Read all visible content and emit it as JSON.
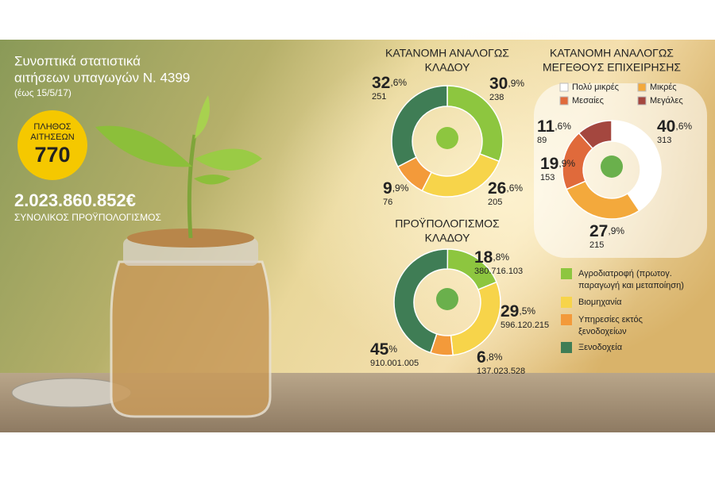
{
  "header": {
    "title_lines": [
      "Συνοπτικά στατιστικά",
      "αιτήσεων υπαγωγών Ν. 4399"
    ],
    "date": "(έως 15/5/17)",
    "count_label_lines": [
      "ΠΛΗΘΟΣ",
      "ΑΙΤΗΣΕΩΝ"
    ],
    "count": "770",
    "budget": "2.023.860.852€",
    "budget_label": "ΣΥΝΟΛΙΚΟΣ ΠΡΟΫΠΟΛΟΓΙΣΜΟΣ"
  },
  "sector_legend": {
    "items": [
      [
        "Αγροδιατροφή (πρωτογ.",
        "παραγωγή και μεταποίηση)"
      ],
      [
        "Βιομηχανία"
      ],
      [
        "Υπηρεσίες εκτός",
        "ξενοδοχείων"
      ],
      [
        "Ξενοδοχεία"
      ]
    ],
    "colors": [
      "#8dc63f",
      "#f7d44a",
      "#f39a3a",
      "#3f7d55"
    ]
  },
  "chart_data": [
    {
      "type": "pie",
      "title": [
        "ΚΑΤΑΝΟΜΗ ΑΝΑΛΟΓΩΣ",
        "ΚΛΑΔΟΥ"
      ],
      "values": [
        30.9,
        26.6,
        9.9,
        32.6
      ],
      "value_labels": [
        "30,9%",
        "26,6%",
        "9,9%",
        "32,6%"
      ],
      "counts": [
        "238",
        "205",
        "76",
        "251"
      ],
      "colors": [
        "#8dc63f",
        "#f7d44a",
        "#f39a3a",
        "#3f7d55"
      ]
    },
    {
      "type": "pie",
      "title": [
        "ΚΑΤΑΝΟΜΗ ΑΝΑΛΟΓΩΣ",
        "ΜΕΓΕΘΟΥΣ ΕΠΙΧΕΙΡΗΣΗΣ"
      ],
      "categories": [
        "Πολύ μικρές",
        "Μικρές",
        "Μεσαίες",
        "Μεγάλες"
      ],
      "values": [
        40.6,
        27.9,
        19.9,
        11.6
      ],
      "value_labels": [
        "40,6%",
        "27,9%",
        "19,9%",
        "11,6%"
      ],
      "counts": [
        "313",
        "215",
        "153",
        "89"
      ],
      "colors": [
        "#ffffff",
        "#f3a93c",
        "#e06a3b",
        "#a4473f"
      ]
    },
    {
      "type": "pie",
      "title": [
        "ΠΡΟΫΠΟΛΟΓΙΣΜΟΣ",
        "ΚΛΑΔΟΥ"
      ],
      "values": [
        18.8,
        29.5,
        6.8,
        45
      ],
      "value_labels": [
        "18,8%",
        "29,5%",
        "6,8%",
        "45%"
      ],
      "counts": [
        "380.716.103",
        "596.120.215",
        "137.023.528",
        "910.001.005"
      ],
      "colors": [
        "#8dc63f",
        "#f7d44a",
        "#f39a3a",
        "#3f7d55"
      ]
    }
  ]
}
